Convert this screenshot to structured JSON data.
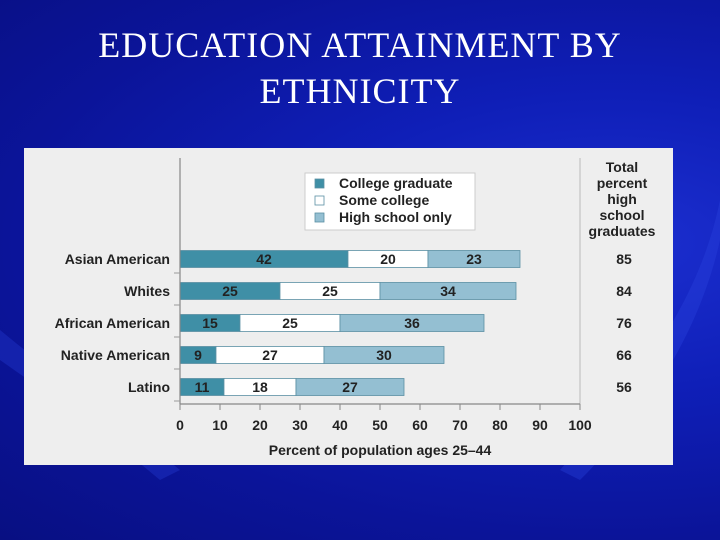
{
  "slide": {
    "title_line1": "EDUCATION ATTAINMENT BY",
    "title_line2": "ETHNICITY"
  },
  "chart_data": {
    "type": "bar",
    "orientation": "horizontal",
    "stacked": true,
    "categories": [
      "Asian American",
      "Whites",
      "African American",
      "Native American",
      "Latino"
    ],
    "series": [
      {
        "name": "College graduate",
        "values": [
          42,
          25,
          15,
          9,
          11
        ],
        "color": "#3f8fa6"
      },
      {
        "name": "Some college",
        "values": [
          20,
          25,
          25,
          27,
          18
        ],
        "color": "#ffffff"
      },
      {
        "name": "High school only",
        "values": [
          23,
          34,
          36,
          30,
          27
        ],
        "color": "#94bfd2"
      }
    ],
    "totals_header": [
      "Total",
      "percent",
      "high",
      "school",
      "graduates"
    ],
    "totals": [
      85,
      84,
      76,
      66,
      56
    ],
    "xlabel": "Percent of population ages 25–44",
    "xlim": [
      0,
      100
    ],
    "xticks": [
      0,
      10,
      20,
      30,
      40,
      50,
      60,
      70,
      80,
      90,
      100
    ],
    "legend_position": "top"
  }
}
